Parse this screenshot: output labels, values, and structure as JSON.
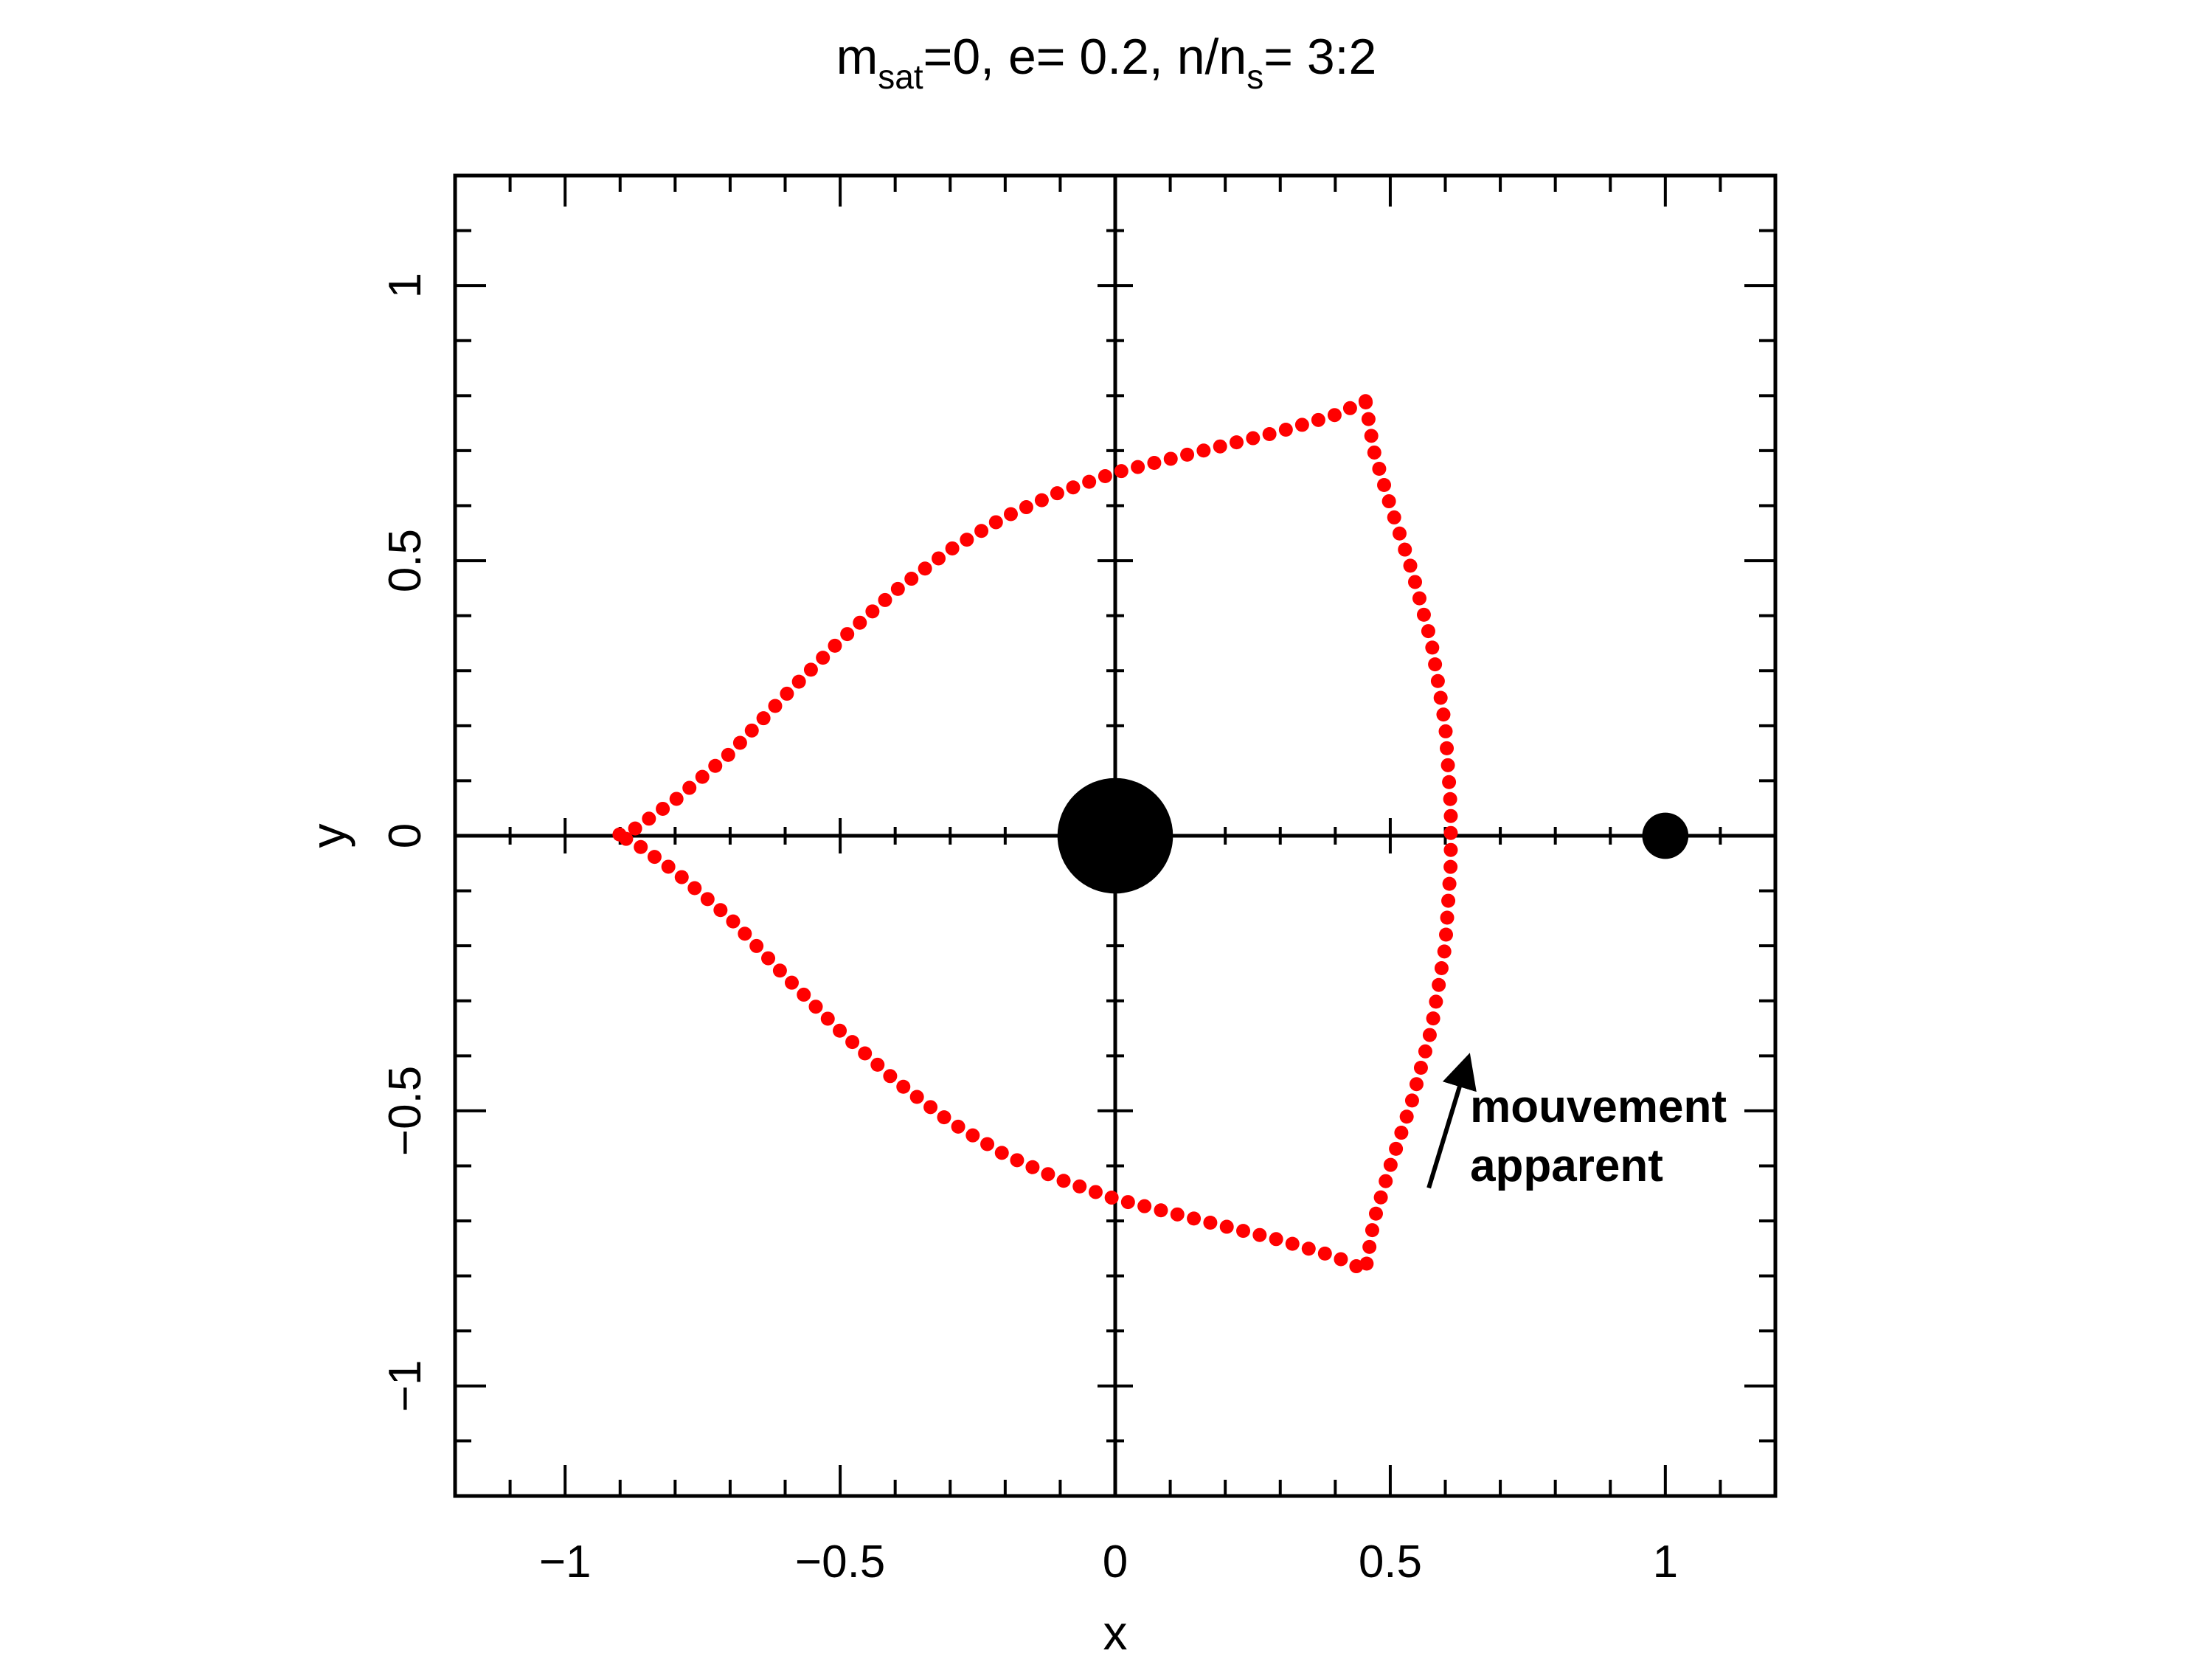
{
  "chart_data": {
    "type": "scatter",
    "title": {
      "m": "m",
      "m_sub": "sat",
      "part1": "=0,  e=  0.2,  n/n",
      "n_sub": "s",
      "part2": "=  3:2"
    },
    "xlabel": "x",
    "ylabel": "y",
    "xlim": [
      -1.2,
      1.2
    ],
    "ylim": [
      -1.2,
      1.2
    ],
    "xticks": [
      {
        "value": -1,
        "label": "−1"
      },
      {
        "value": -0.5,
        "label": "−0.5"
      },
      {
        "value": 0,
        "label": "0"
      },
      {
        "value": 0.5,
        "label": "0.5"
      },
      {
        "value": 1,
        "label": "1"
      }
    ],
    "yticks": [
      {
        "value": -1,
        "label": "−1"
      },
      {
        "value": -0.5,
        "label": "−0.5"
      },
      {
        "value": 0,
        "label": "0"
      },
      {
        "value": 0.5,
        "label": "0.5"
      },
      {
        "value": 1,
        "label": "1"
      }
    ],
    "minor_tick_step": 0.1,
    "zero_axes": true,
    "grid": false,
    "trajectory": {
      "color": "#ff0000",
      "points": [
        {
          "x": 0.455,
          "y": 0.79
        },
        {
          "x": 0.4,
          "y": 0.765
        },
        {
          "x": 0.3,
          "y": 0.735
        },
        {
          "x": 0.2,
          "y": 0.71
        },
        {
          "x": 0.1,
          "y": 0.685
        },
        {
          "x": 0.0,
          "y": 0.66
        },
        {
          "x": -0.1,
          "y": 0.625
        },
        {
          "x": -0.2,
          "y": 0.58
        },
        {
          "x": -0.3,
          "y": 0.52
        },
        {
          "x": -0.4,
          "y": 0.445
        },
        {
          "x": -0.5,
          "y": 0.355
        },
        {
          "x": -0.6,
          "y": 0.255
        },
        {
          "x": -0.7,
          "y": 0.15
        },
        {
          "x": -0.8,
          "y": 0.065
        },
        {
          "x": -0.88,
          "y": 0.008
        },
        {
          "x": -0.91,
          "y": 0.0
        },
        {
          "x": -0.88,
          "y": -0.008
        },
        {
          "x": -0.8,
          "y": -0.065
        },
        {
          "x": -0.7,
          "y": -0.15
        },
        {
          "x": -0.6,
          "y": -0.255
        },
        {
          "x": -0.5,
          "y": -0.355
        },
        {
          "x": -0.4,
          "y": -0.445
        },
        {
          "x": -0.3,
          "y": -0.52
        },
        {
          "x": -0.2,
          "y": -0.58
        },
        {
          "x": -0.1,
          "y": -0.625
        },
        {
          "x": 0.0,
          "y": -0.66
        },
        {
          "x": 0.1,
          "y": -0.685
        },
        {
          "x": 0.2,
          "y": -0.71
        },
        {
          "x": 0.3,
          "y": -0.735
        },
        {
          "x": 0.4,
          "y": -0.765
        },
        {
          "x": 0.455,
          "y": -0.79
        },
        {
          "x": 0.47,
          "y": -0.7
        },
        {
          "x": 0.5,
          "y": -0.6
        },
        {
          "x": 0.54,
          "y": -0.48
        },
        {
          "x": 0.575,
          "y": -0.35
        },
        {
          "x": 0.6,
          "y": -0.2
        },
        {
          "x": 0.61,
          "y": -0.05
        },
        {
          "x": 0.61,
          "y": 0.0
        },
        {
          "x": 0.61,
          "y": 0.05
        },
        {
          "x": 0.6,
          "y": 0.2
        },
        {
          "x": 0.575,
          "y": 0.35
        },
        {
          "x": 0.54,
          "y": 0.48
        },
        {
          "x": 0.5,
          "y": 0.6
        },
        {
          "x": 0.47,
          "y": 0.7
        },
        {
          "x": 0.455,
          "y": 0.79
        }
      ]
    },
    "bodies": [
      {
        "name": "central-body",
        "x": 0,
        "y": 0,
        "radius": 0.105
      },
      {
        "name": "satellite",
        "x": 1,
        "y": 0,
        "radius": 0.042
      }
    ],
    "annotation": {
      "line1": "mouvement",
      "line2": "apparent",
      "arrow_from": {
        "x": 0.57,
        "y": -0.64
      },
      "arrow_to": {
        "x": 0.64,
        "y": -0.41
      },
      "text_at": {
        "x": 0.645,
        "y": -0.52
      }
    }
  }
}
